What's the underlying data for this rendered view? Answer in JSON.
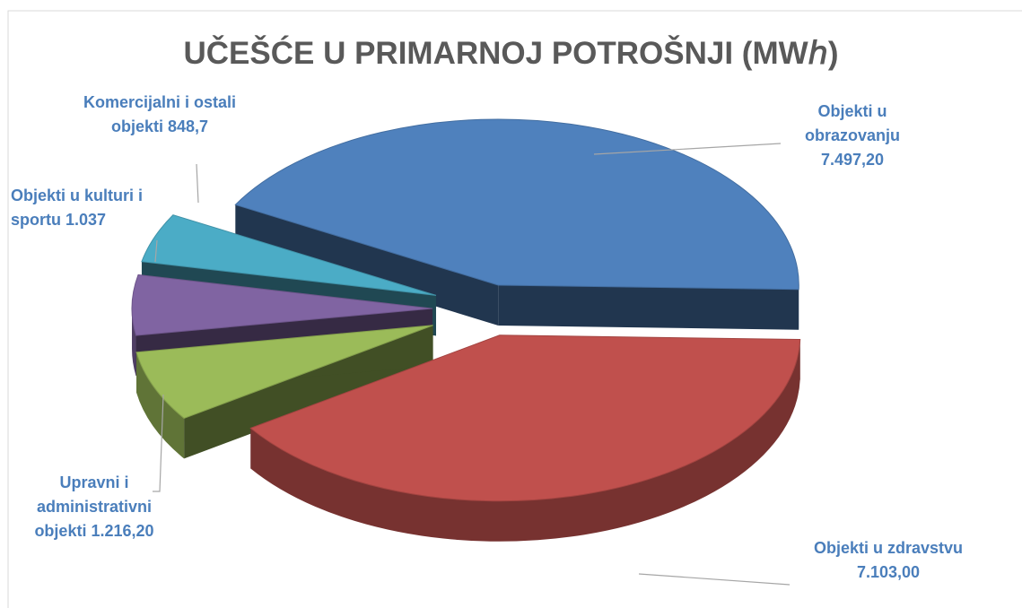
{
  "chart_data": {
    "type": "pie3d",
    "title": "UČEŠĆE U PRIMARNOJ POTROŠNJI (MWℎ)",
    "categories": [
      "Objekti u obrazovanju",
      "Objekti u zdravstvu",
      "Upravni i administrativni objekti",
      "Objekti u kulturi i sportu",
      "Komercijalni i ostali objekti"
    ],
    "values": [
      7497.2,
      7103.0,
      1216.2,
      1037,
      848.7
    ],
    "value_labels": [
      "7.497,20",
      "7.103,00",
      "1.216,20",
      "1.037",
      "848,7"
    ],
    "colors": [
      "#4f81bd",
      "#c0504d",
      "#9bbb59",
      "#8064a2",
      "#4bacc6"
    ]
  }
}
